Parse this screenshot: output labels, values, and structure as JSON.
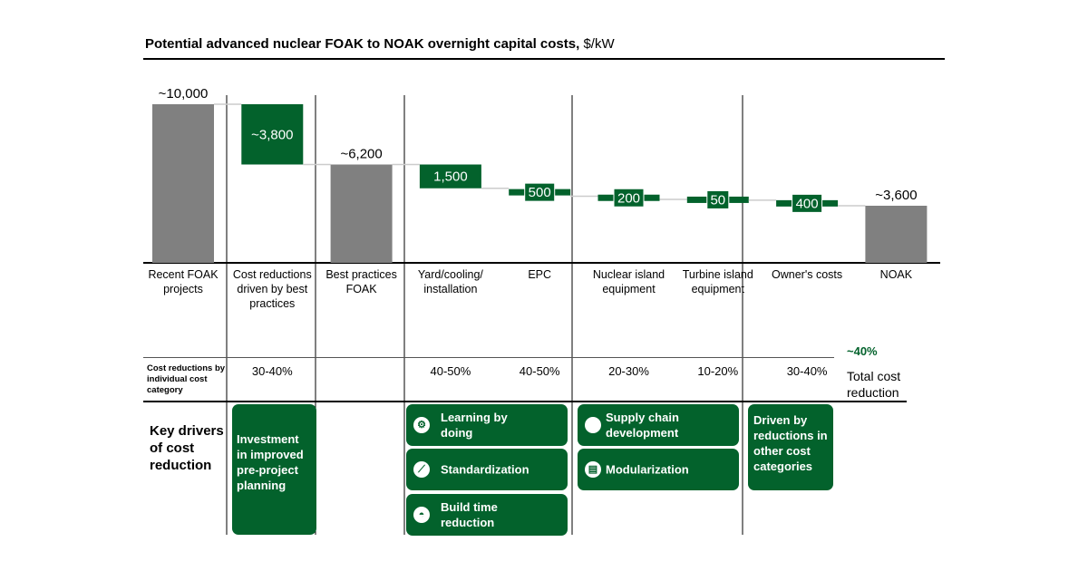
{
  "title": {
    "main": "Potential advanced nuclear FOAK to NOAK overnight capital costs,",
    "unit": "$/kW"
  },
  "chart_data": {
    "type": "waterfall",
    "title": "Potential advanced nuclear FOAK to NOAK overnight capital costs, $/kW",
    "categories": [
      "Recent FOAK projects",
      "Cost reductions driven by best practices",
      "Best practices FOAK",
      "Yard/cooling/ installation",
      "EPC",
      "Nuclear island equipment",
      "Turbine island equipment",
      "Owner's costs",
      "NOAK"
    ],
    "bars": [
      {
        "kind": "total",
        "value": 10000,
        "label": "~10,000"
      },
      {
        "kind": "decrease",
        "value": 3800,
        "label": "~3,800"
      },
      {
        "kind": "total",
        "value": 6200,
        "label": "~6,200"
      },
      {
        "kind": "decrease",
        "value": 1500,
        "label": "1,500"
      },
      {
        "kind": "decrease",
        "value": 500,
        "label": "500"
      },
      {
        "kind": "decrease",
        "value": 200,
        "label": "200"
      },
      {
        "kind": "decrease",
        "value": 50,
        "label": "50"
      },
      {
        "kind": "decrease",
        "value": 400,
        "label": "400"
      },
      {
        "kind": "total",
        "value": 3600,
        "label": "~3,600"
      }
    ],
    "colors": {
      "total": "#808080",
      "decrease": "#03622c"
    }
  },
  "reductions": {
    "row_label": "Cost reductions by individual cost category",
    "values": [
      "",
      "30-40%",
      "",
      "40-50%",
      "40-50%",
      "20-30%",
      "10-20%",
      "30-40%",
      ""
    ],
    "total_value": "~40%",
    "total_label": "Total cost reduction"
  },
  "drivers": {
    "label": "Key drivers of cost reduction",
    "items": [
      {
        "text": "Investment in improved pre-project planning",
        "icon": ""
      },
      {
        "text": "Learning by doing",
        "icon": "people-gears-icon"
      },
      {
        "text": "Standardization",
        "icon": "ruler-icon"
      },
      {
        "text": "Build time reduction",
        "icon": "hard-hat-icon"
      },
      {
        "text": "Supply chain development",
        "icon": "circle-icon"
      },
      {
        "text": "Modularization",
        "icon": "modules-icon"
      },
      {
        "text": "Driven by reductions in other cost categories",
        "icon": ""
      }
    ]
  }
}
